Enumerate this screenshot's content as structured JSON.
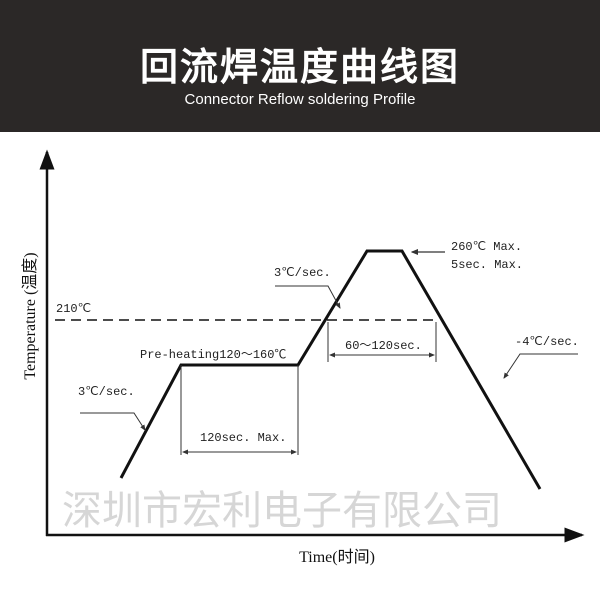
{
  "header": {
    "title": "回流焊温度曲线图",
    "subtitle": "Connector  Reflow soldering Profile"
  },
  "diagram": {
    "y_axis_label": "Temperature (温度)",
    "x_axis_label": "Time(时间)",
    "reference_line_label": "210℃",
    "ramp1_label": "3℃/sec.",
    "preheat_label": "Pre-heating120～160℃",
    "preheat_duration_label": "120sec. Max.",
    "ramp2_label": "3℃/sec.",
    "peak_label_1": "260℃ Max.",
    "peak_label_2": "5sec. Max.",
    "reflow_duration_label": "60～120sec.",
    "cooling_label": "-4℃/sec."
  },
  "watermark": "深圳市宏利电子有限公司",
  "colors": {
    "header_bg": "#2b2827",
    "line": "#111111",
    "watermark": "#cfcfcf"
  }
}
